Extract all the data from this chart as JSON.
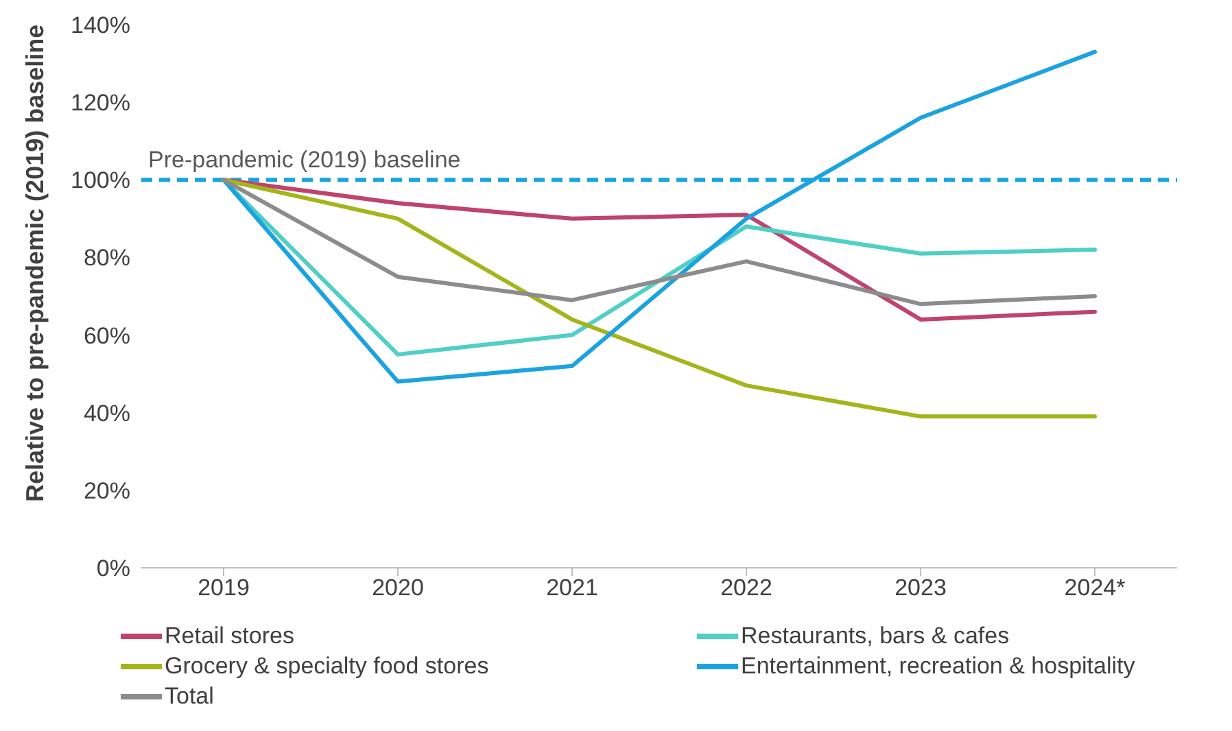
{
  "chart_data": {
    "type": "line",
    "ylabel": "Relative to pre-pandemic (2019) baseline",
    "categories": [
      "2019",
      "2020",
      "2021",
      "2022",
      "2023",
      "2024*"
    ],
    "series": [
      {
        "name": "Retail stores",
        "color": "#c0426e",
        "values": [
          100,
          94,
          90,
          91,
          64,
          66
        ]
      },
      {
        "name": "Restaurants, bars & cafes",
        "color": "#4fcfc6",
        "values": [
          100,
          55,
          60,
          88,
          81,
          82
        ]
      },
      {
        "name": "Grocery & specialty food stores",
        "color": "#a4b51c",
        "values": [
          100,
          90,
          64,
          47,
          39,
          39
        ]
      },
      {
        "name": "Entertainment, recreation & hospitality",
        "color": "#1aa3e0",
        "values": [
          100,
          48,
          52,
          90,
          116,
          133
        ]
      },
      {
        "name": "Total",
        "color": "#8c8c8c",
        "values": [
          100,
          75,
          69,
          79,
          68,
          70
        ]
      }
    ],
    "ylim": [
      0,
      140
    ],
    "yticks": [
      {
        "value": 0,
        "label": "0%"
      },
      {
        "value": 20,
        "label": "20%"
      },
      {
        "value": 40,
        "label": "40%"
      },
      {
        "value": 60,
        "label": "60%"
      },
      {
        "value": 80,
        "label": "80%"
      },
      {
        "value": 100,
        "label": "100%"
      },
      {
        "value": 120,
        "label": "120%"
      },
      {
        "value": 140,
        "label": "140%"
      }
    ],
    "ref_lines": [
      {
        "axis": "y",
        "value": 100,
        "label": "Pre-pandemic (2019) baseline",
        "color": "#1aa3e0",
        "line_style": "dashed"
      }
    ],
    "grid": false,
    "legend": "bottom",
    "marker": "none",
    "line_style": "solid"
  }
}
